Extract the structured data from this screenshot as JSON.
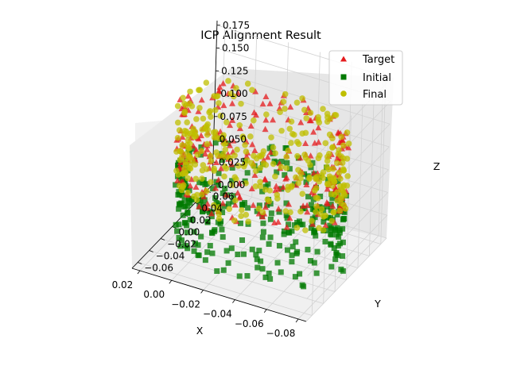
{
  "chart_data": {
    "type": "scatter3d",
    "title": "ICP Alignment Result",
    "xlabel": "X",
    "ylabel": "Y",
    "zlabel": "Z",
    "xlim": [
      -0.085,
      0.025
    ],
    "ylim": [
      -0.07,
      0.07
    ],
    "zlim": [
      0.0,
      0.18
    ],
    "x_ticks": [
      "−0.08",
      "−0.06",
      "−0.04",
      "−0.02",
      "0.00",
      "0.02"
    ],
    "y_ticks": [
      "−0.06",
      "−0.04",
      "−0.02",
      "0.00",
      "0.02",
      "0.04",
      "0.06"
    ],
    "z_ticks": [
      "0.000",
      "0.025",
      "0.050",
      "0.075",
      "0.100",
      "0.125",
      "0.150",
      "0.175"
    ],
    "grid": true,
    "legend": "top-right",
    "series": [
      {
        "name": "Target",
        "marker": "triangle",
        "color": "#e41a1c",
        "shape": "ring",
        "center": [
          -0.03,
          0.0
        ],
        "radius": 0.05,
        "z_range": [
          0.06,
          0.15
        ],
        "samples": 260
      },
      {
        "name": "Initial",
        "marker": "square",
        "color": "#007a00",
        "shape": "ring",
        "center": [
          -0.03,
          0.0
        ],
        "radius": 0.05,
        "z_range": [
          0.0,
          0.09
        ],
        "samples": 320
      },
      {
        "name": "Final",
        "marker": "circle",
        "color": "#bfbf00",
        "shape": "ring",
        "center": [
          -0.03,
          0.0
        ],
        "radius": 0.05,
        "z_range": [
          0.06,
          0.15
        ],
        "samples": 320
      }
    ]
  }
}
